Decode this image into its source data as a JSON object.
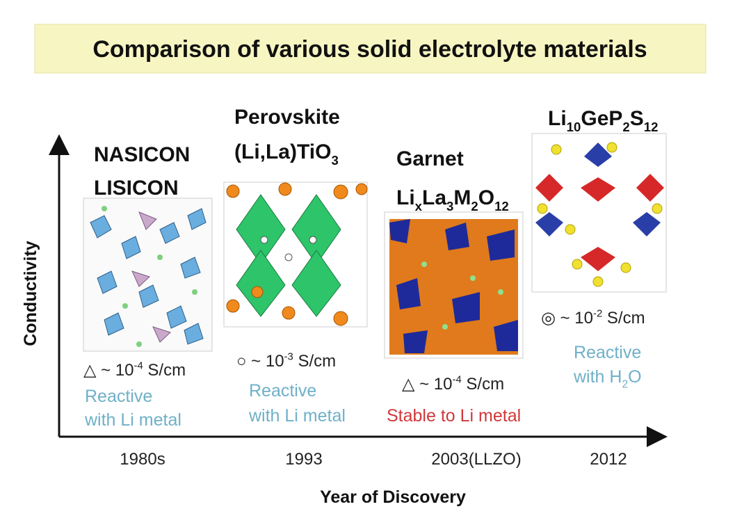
{
  "title": "Comparison of various solid electrolyte materials",
  "y_axis_label": "Conductivity",
  "x_axis_label": "Year of Discovery",
  "columns": [
    {
      "name": [
        [
          {
            "t": "NASICON"
          }
        ],
        [
          {
            "t": "LISICON"
          }
        ]
      ],
      "conductivity": [
        {
          "t": "△ ~ 10"
        },
        {
          "sup": "-4"
        },
        {
          "t": " S/cm"
        }
      ],
      "note": [
        [
          {
            "t": "Reactive"
          }
        ],
        [
          {
            "t": "with Li metal"
          }
        ]
      ],
      "note_color": "#6fb0c8",
      "year": "1980s"
    },
    {
      "name": [
        [
          {
            "t": "Perovskite"
          }
        ],
        [
          {
            "t": "(Li,La)TiO"
          },
          {
            "sub": "3"
          }
        ]
      ],
      "conductivity": [
        {
          "t": "○ ~ 10"
        },
        {
          "sup": "-3"
        },
        {
          "t": " S/cm"
        }
      ],
      "note": [
        [
          {
            "t": "Reactive"
          }
        ],
        [
          {
            "t": "with Li metal"
          }
        ]
      ],
      "note_color": "#6fb0c8",
      "year": "1993"
    },
    {
      "name": [
        [
          {
            "t": "Garnet"
          }
        ],
        [
          {
            "t": "Li"
          },
          {
            "sub": "x"
          },
          {
            "t": "La"
          },
          {
            "sub": "3"
          },
          {
            "t": "M"
          },
          {
            "sub": "2"
          },
          {
            "t": "O"
          },
          {
            "sub": "12"
          }
        ]
      ],
      "conductivity": [
        {
          "t": "△ ~ 10"
        },
        {
          "sup": "-4"
        },
        {
          "t": " S/cm"
        }
      ],
      "note": [
        [
          {
            "t": "Stable to Li metal"
          }
        ]
      ],
      "note_color": "#d0383a",
      "year": "2003(LLZO)"
    },
    {
      "name": [
        [
          {
            "t": "Li"
          },
          {
            "sub": "10"
          },
          {
            "t": "GeP"
          },
          {
            "sub": "2"
          },
          {
            "t": "S"
          },
          {
            "sub": "12"
          }
        ]
      ],
      "conductivity": [
        {
          "t": "◎ ~ 10"
        },
        {
          "sup": "-2"
        },
        {
          "t": " S/cm"
        }
      ],
      "note": [
        [
          {
            "t": "Reactive"
          }
        ],
        [
          {
            "t": "with H"
          },
          {
            "sub": "2"
          },
          {
            "t": "O"
          }
        ]
      ],
      "note_color": "#6fb0c8",
      "year": "2012"
    }
  ]
}
